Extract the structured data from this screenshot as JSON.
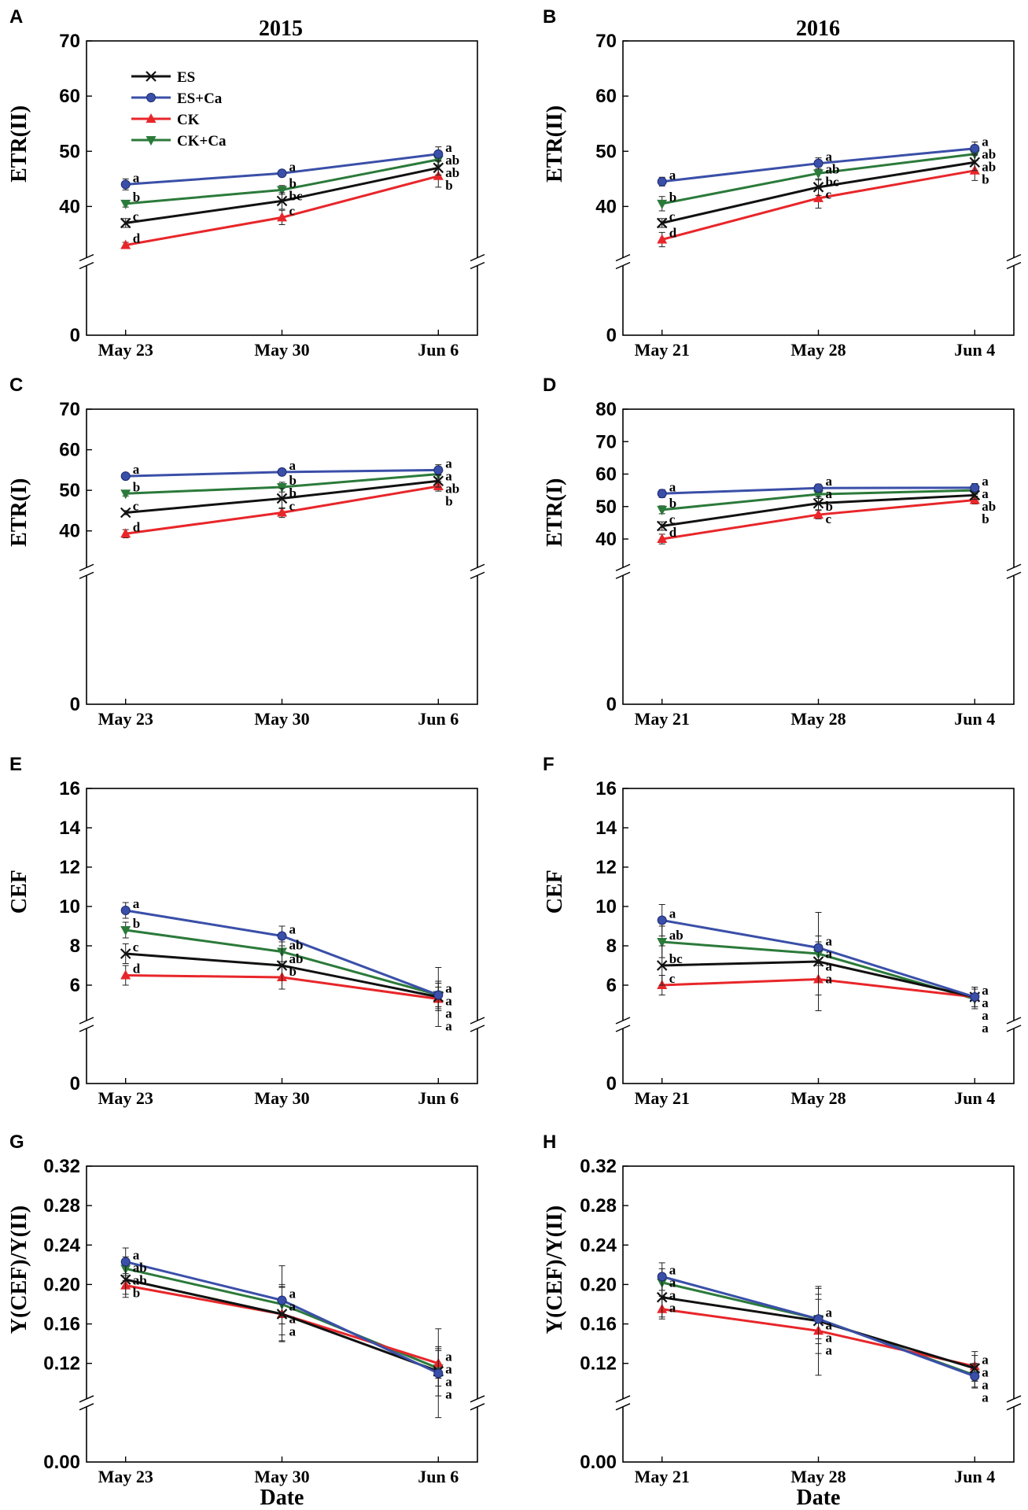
{
  "years": [
    "2015",
    "2016"
  ],
  "series_names": [
    "ES",
    "ES+Ca",
    "CK",
    "CK+Ca"
  ],
  "series_colors": [
    "#111111",
    "#3a4fa8",
    "#e8262a",
    "#2b7a3a"
  ],
  "xlabel": "Date",
  "chart_data": [
    {
      "panel": "A",
      "type": "line",
      "ylabel": "ETR(II)",
      "ylim": [
        0,
        70
      ],
      "ybreak": true,
      "yticks": [
        "0",
        "40",
        "50",
        "60",
        "70"
      ],
      "categories": [
        "May 23",
        "May 30",
        "Jun 6"
      ],
      "series": [
        {
          "name": "ES",
          "values": [
            37,
            41,
            47
          ],
          "errors": [
            0.8,
            1.5,
            1.3
          ],
          "letters": [
            "c",
            "bc",
            "ab"
          ]
        },
        {
          "name": "ES+Ca",
          "values": [
            44,
            46,
            49.5
          ],
          "errors": [
            1.0,
            0.5,
            1.3
          ],
          "letters": [
            "a",
            "a",
            "a"
          ]
        },
        {
          "name": "CK",
          "values": [
            33,
            38,
            45.5
          ],
          "errors": [
            0.5,
            1.3,
            2.0
          ],
          "letters": [
            "d",
            "c",
            "b"
          ]
        },
        {
          "name": "CK+Ca",
          "values": [
            40.5,
            43,
            48.5
          ],
          "errors": [
            0.6,
            0.8,
            1.0
          ],
          "letters": [
            "b",
            "b",
            "ab"
          ]
        }
      ]
    },
    {
      "panel": "B",
      "type": "line",
      "ylabel": "ETR(II)",
      "ylim": [
        0,
        70
      ],
      "ybreak": true,
      "yticks": [
        "0",
        "40",
        "50",
        "60",
        "70"
      ],
      "categories": [
        "May 21",
        "May 28",
        "Jun 4"
      ],
      "series": [
        {
          "name": "ES",
          "values": [
            37,
            43.5,
            48
          ],
          "errors": [
            0.8,
            1.5,
            1.5
          ],
          "letters": [
            "c",
            "bc",
            "ab"
          ]
        },
        {
          "name": "ES+Ca",
          "values": [
            44.5,
            47.8,
            50.5
          ],
          "errors": [
            0.8,
            1.0,
            1.2
          ],
          "letters": [
            "a",
            "a",
            "a"
          ]
        },
        {
          "name": "CK",
          "values": [
            34,
            41.5,
            46.5
          ],
          "errors": [
            1.3,
            1.8,
            1.8
          ],
          "letters": [
            "d",
            "c",
            "b"
          ]
        },
        {
          "name": "CK+Ca",
          "values": [
            40.5,
            46,
            49.5
          ],
          "errors": [
            1.3,
            1.2,
            1.2
          ],
          "letters": [
            "b",
            "ab",
            "ab"
          ]
        }
      ]
    },
    {
      "panel": "C",
      "type": "line",
      "ylabel": "ETR(I)",
      "ylim": [
        0,
        70
      ],
      "ybreak": true,
      "yticks": [
        "0",
        "40",
        "50",
        "60",
        "70"
      ],
      "categories": [
        "May 23",
        "May 30",
        "Jun 6"
      ],
      "series": [
        {
          "name": "ES",
          "values": [
            44.5,
            48,
            52.3
          ],
          "errors": [
            0.5,
            2.5,
            1.5
          ],
          "letters": [
            "c",
            "b",
            "ab"
          ]
        },
        {
          "name": "ES+Ca",
          "values": [
            53.5,
            54.5,
            55
          ],
          "errors": [
            0.6,
            0.8,
            1.3
          ],
          "letters": [
            "a",
            "a",
            "a"
          ]
        },
        {
          "name": "CK",
          "values": [
            39.3,
            44.5,
            51
          ],
          "errors": [
            1.0,
            1.2,
            1.2
          ],
          "letters": [
            "d",
            "c",
            "b"
          ]
        },
        {
          "name": "CK+Ca",
          "values": [
            49.2,
            50.8,
            54
          ],
          "errors": [
            0.6,
            1.2,
            1.0
          ],
          "letters": [
            "b",
            "b",
            "a"
          ]
        }
      ]
    },
    {
      "panel": "D",
      "type": "line",
      "ylabel": "ETR(I)",
      "ylim": [
        0,
        80
      ],
      "ybreak": true,
      "yticks": [
        "0",
        "40",
        "50",
        "60",
        "70",
        "80"
      ],
      "categories": [
        "May 21",
        "May 28",
        "Jun 4"
      ],
      "series": [
        {
          "name": "ES",
          "values": [
            44,
            51,
            53.5
          ],
          "errors": [
            1.3,
            2.0,
            1.3
          ],
          "letters": [
            "c",
            "b",
            "ab"
          ]
        },
        {
          "name": "ES+Ca",
          "values": [
            54,
            55.7,
            55.8
          ],
          "errors": [
            1.2,
            1.2,
            1.3
          ],
          "letters": [
            "a",
            "a",
            "a"
          ]
        },
        {
          "name": "CK",
          "values": [
            40,
            47.5,
            52
          ],
          "errors": [
            1.5,
            1.3,
            1.2
          ],
          "letters": [
            "d",
            "c",
            "b"
          ]
        },
        {
          "name": "CK+Ca",
          "values": [
            49,
            53.8,
            55
          ],
          "errors": [
            1.2,
            1.3,
            1.2
          ],
          "letters": [
            "b",
            "a",
            "a"
          ]
        }
      ]
    },
    {
      "panel": "E",
      "type": "line",
      "ylabel": "CEF",
      "ylim": [
        0,
        16
      ],
      "ybreak": true,
      "yticks": [
        "0",
        "6",
        "8",
        "10",
        "12",
        "14",
        "16"
      ],
      "categories": [
        "May 23",
        "May 30",
        "Jun 6"
      ],
      "series": [
        {
          "name": "ES",
          "values": [
            7.6,
            7.0,
            5.4
          ],
          "errors": [
            0.5,
            1.2,
            1.5
          ],
          "letters": [
            "c",
            "ab",
            "a"
          ]
        },
        {
          "name": "ES+Ca",
          "values": [
            9.8,
            8.5,
            5.5
          ],
          "errors": [
            0.4,
            0.5,
            0.7
          ],
          "letters": [
            "a",
            "a",
            "a"
          ]
        },
        {
          "name": "CK",
          "values": [
            6.5,
            6.4,
            5.3
          ],
          "errors": [
            0.5,
            0.6,
            0.6
          ],
          "letters": [
            "d",
            "b",
            "a"
          ]
        },
        {
          "name": "CK+Ca",
          "values": [
            8.8,
            7.7,
            5.5
          ],
          "errors": [
            0.4,
            0.5,
            0.6
          ],
          "letters": [
            "b",
            "ab",
            "a"
          ]
        }
      ]
    },
    {
      "panel": "F",
      "type": "line",
      "ylabel": "CEF",
      "ylim": [
        0,
        16
      ],
      "ybreak": true,
      "yticks": [
        "0",
        "6",
        "8",
        "10",
        "12",
        "14",
        "16"
      ],
      "categories": [
        "May 21",
        "May 28",
        "Jun 4"
      ],
      "series": [
        {
          "name": "ES",
          "values": [
            7.0,
            7.2,
            5.4
          ],
          "errors": [
            1.0,
            2.5,
            0.5
          ],
          "letters": [
            "bc",
            "a",
            "a"
          ]
        },
        {
          "name": "ES+Ca",
          "values": [
            9.3,
            7.9,
            5.4
          ],
          "errors": [
            0.8,
            0.6,
            0.5
          ],
          "letters": [
            "a",
            "a",
            "a"
          ]
        },
        {
          "name": "CK",
          "values": [
            6.0,
            6.3,
            5.4
          ],
          "errors": [
            0.5,
            0.8,
            0.5
          ],
          "letters": [
            "c",
            "a",
            "a"
          ]
        },
        {
          "name": "CK+Ca",
          "values": [
            8.2,
            7.6,
            5.3
          ],
          "errors": [
            0.8,
            0.6,
            0.5
          ],
          "letters": [
            "ab",
            "a",
            "a"
          ]
        }
      ]
    },
    {
      "panel": "G",
      "type": "line",
      "ylabel": "Y(CEF)/Y(II)",
      "ylim": [
        0,
        0.32
      ],
      "ybreak": true,
      "yticks": [
        "0.00",
        "0.12",
        "0.16",
        "0.20",
        "0.24",
        "0.28",
        "0.32"
      ],
      "categories": [
        "May 23",
        "May 30",
        "Jun 6"
      ],
      "series": [
        {
          "name": "ES",
          "values": [
            0.205,
            0.17,
            0.112
          ],
          "errors": [
            0.015,
            0.028,
            0.025
          ],
          "letters": [
            "ab",
            "a",
            "a"
          ]
        },
        {
          "name": "ES+Ca",
          "values": [
            0.223,
            0.184,
            0.11
          ],
          "errors": [
            0.014,
            0.035,
            0.045
          ],
          "letters": [
            "a",
            "a",
            "a"
          ]
        },
        {
          "name": "CK",
          "values": [
            0.199,
            0.17,
            0.12
          ],
          "errors": [
            0.012,
            0.027,
            0.015
          ],
          "letters": [
            "b",
            "a",
            "a"
          ]
        },
        {
          "name": "CK+Ca",
          "values": [
            0.216,
            0.18,
            0.115
          ],
          "errors": [
            0.012,
            0.02,
            0.018
          ],
          "letters": [
            "ab",
            "a",
            "a"
          ]
        }
      ]
    },
    {
      "panel": "H",
      "type": "line",
      "ylabel": "Y(CEF)/Y(II)",
      "ylim": [
        0,
        0.32
      ],
      "ybreak": true,
      "yticks": [
        "0.00",
        "0.12",
        "0.16",
        "0.20",
        "0.24",
        "0.28",
        "0.32"
      ],
      "categories": [
        "May 21",
        "May 28",
        "Jun 4"
      ],
      "series": [
        {
          "name": "ES",
          "values": [
            0.187,
            0.163,
            0.115
          ],
          "errors": [
            0.02,
            0.033,
            0.013
          ],
          "letters": [
            "a",
            "a",
            "a"
          ]
        },
        {
          "name": "ES+Ca",
          "values": [
            0.208,
            0.165,
            0.107
          ],
          "errors": [
            0.014,
            0.02,
            0.012
          ],
          "letters": [
            "a",
            "a",
            "a"
          ]
        },
        {
          "name": "CK",
          "values": [
            0.175,
            0.153,
            0.117
          ],
          "errors": [
            0.01,
            0.045,
            0.015
          ],
          "letters": [
            "a",
            "a",
            "a"
          ]
        },
        {
          "name": "CK+Ca",
          "values": [
            0.202,
            0.165,
            0.108
          ],
          "errors": [
            0.014,
            0.025,
            0.012
          ],
          "letters": [
            "a",
            "a",
            "a"
          ]
        }
      ]
    }
  ]
}
